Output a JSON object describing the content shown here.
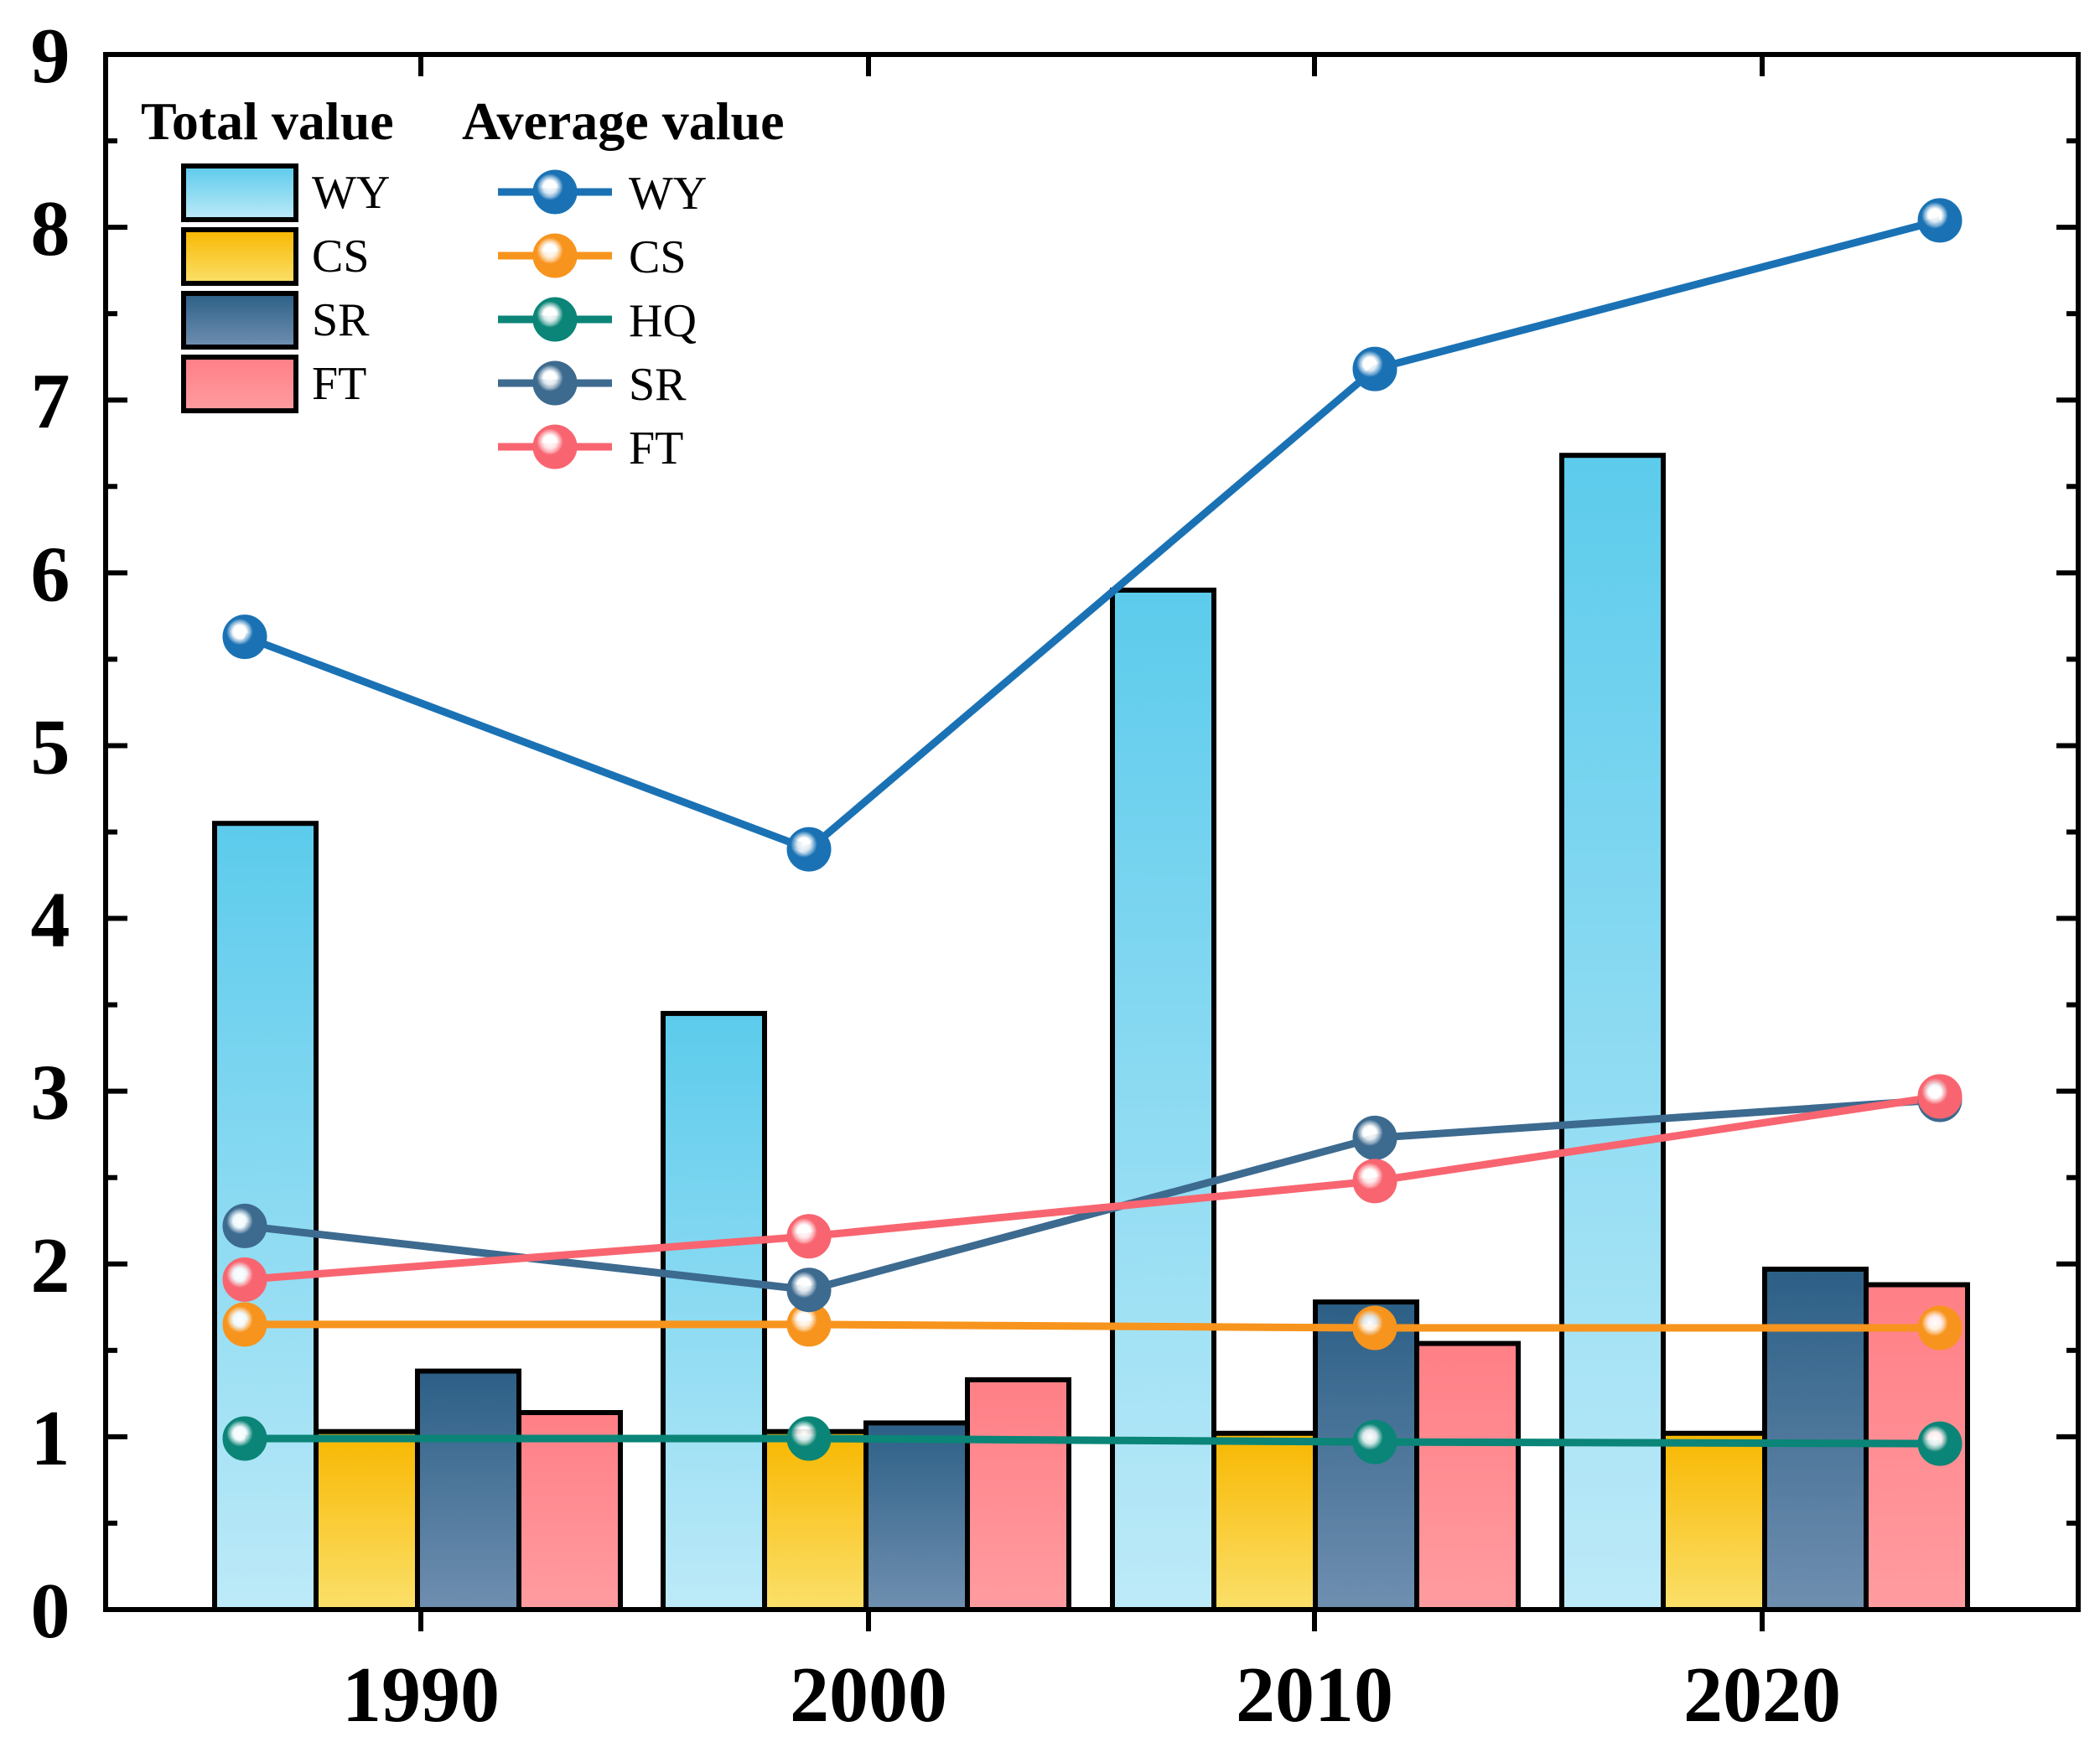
{
  "chart_data": {
    "type": "bar",
    "title": "",
    "xlabel": "",
    "ylabel": "",
    "ylim": [
      0,
      9
    ],
    "yticks": [
      "0",
      "1",
      "2",
      "3",
      "4",
      "5",
      "6",
      "7",
      "8",
      "9"
    ],
    "categories": [
      "1990",
      "2000",
      "2010",
      "2020"
    ],
    "legend": {
      "bar_title": "Total value",
      "line_title": "Average value",
      "placement": "top-left"
    },
    "bar_series": [
      {
        "name": "WY",
        "values": [
          4.55,
          3.45,
          5.9,
          6.68
        ],
        "color_top": "#5ccbec",
        "color_bottom": "#bdeaf8"
      },
      {
        "name": "CS",
        "values": [
          1.03,
          1.03,
          1.02,
          1.02
        ],
        "color_top": "#f8b700",
        "color_bottom": "#fbe06a"
      },
      {
        "name": "SR",
        "values": [
          1.38,
          1.08,
          1.78,
          1.97
        ],
        "color_top": "#2c5f86",
        "color_bottom": "#6f8fb0"
      },
      {
        "name": "FT",
        "values": [
          1.14,
          1.33,
          1.54,
          1.88
        ],
        "color_top": "#ff7f86",
        "color_bottom": "#ff9ca0"
      }
    ],
    "line_series": [
      {
        "name": "WY",
        "values": [
          5.63,
          4.4,
          7.18,
          8.04
        ],
        "color": "#1a72b5"
      },
      {
        "name": "CS",
        "values": [
          1.65,
          1.65,
          1.63,
          1.63
        ],
        "color": "#f7941d"
      },
      {
        "name": "HQ",
        "values": [
          0.99,
          0.99,
          0.97,
          0.96
        ],
        "color": "#0a8577"
      },
      {
        "name": "SR",
        "values": [
          2.22,
          1.85,
          2.73,
          2.95
        ],
        "color": "#3d6a8f"
      },
      {
        "name": "FT",
        "values": [
          1.91,
          2.16,
          2.48,
          2.97
        ],
        "color": "#f86570"
      }
    ]
  }
}
